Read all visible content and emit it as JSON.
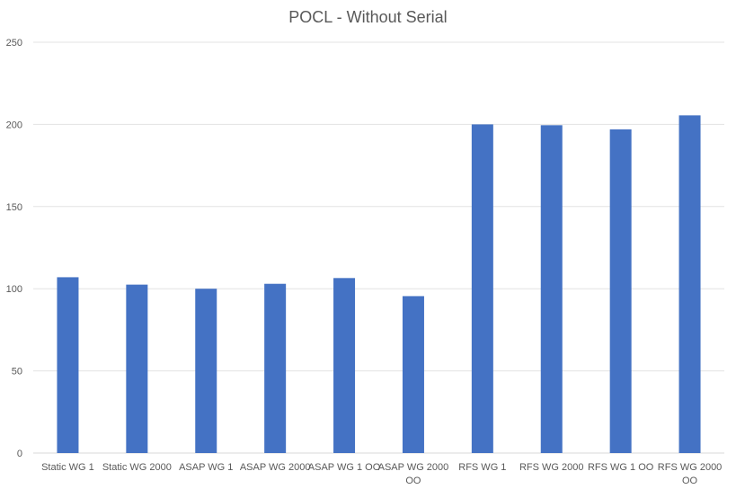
{
  "chart_data": {
    "type": "bar",
    "title": "POCL - Without Serial",
    "xlabel": "",
    "ylabel": "",
    "ylim": [
      0,
      250
    ],
    "yticks": [
      0,
      50,
      100,
      150,
      200,
      250
    ],
    "grid": true,
    "legend": "none",
    "bar_color": "#4472C4",
    "categories": [
      "Static WG 1",
      "Static WG 2000",
      "ASAP WG 1",
      "ASAP WG 2000",
      "ASAP WG 1 OO",
      "ASAP WG 2000 OO",
      "RFS WG 1",
      "RFS WG 2000",
      "RFS WG 1 OO",
      "RFS WG 2000 OO"
    ],
    "category_lines": [
      [
        "Static WG 1"
      ],
      [
        "Static WG 2000"
      ],
      [
        "ASAP WG 1"
      ],
      [
        "ASAP WG 2000"
      ],
      [
        "ASAP WG 1 OO"
      ],
      [
        "ASAP WG 2000",
        "OO"
      ],
      [
        "RFS WG 1"
      ],
      [
        "RFS WG 2000"
      ],
      [
        "RFS WG 1 OO"
      ],
      [
        "RFS WG 2000",
        "OO"
      ]
    ],
    "values": [
      107,
      102.5,
      100,
      103,
      106.5,
      95.5,
      200,
      199.5,
      197,
      205.5
    ]
  }
}
